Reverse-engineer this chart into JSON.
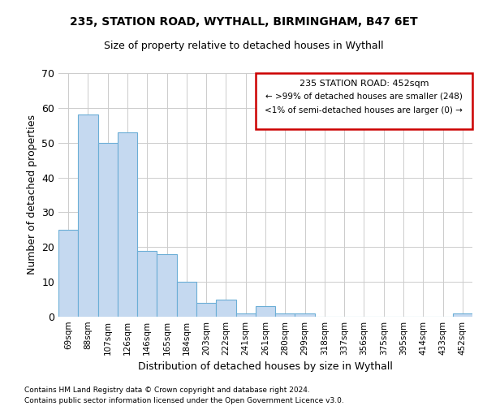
{
  "title1": "235, STATION ROAD, WYTHALL, BIRMINGHAM, B47 6ET",
  "title2": "Size of property relative to detached houses in Wythall",
  "xlabel": "Distribution of detached houses by size in Wythall",
  "ylabel": "Number of detached properties",
  "categories": [
    "69sqm",
    "88sqm",
    "107sqm",
    "126sqm",
    "146sqm",
    "165sqm",
    "184sqm",
    "203sqm",
    "222sqm",
    "241sqm",
    "261sqm",
    "280sqm",
    "299sqm",
    "318sqm",
    "337sqm",
    "356sqm",
    "375sqm",
    "395sqm",
    "414sqm",
    "433sqm",
    "452sqm"
  ],
  "values": [
    25,
    58,
    50,
    53,
    19,
    18,
    10,
    4,
    5,
    1,
    3,
    1,
    1,
    0,
    0,
    0,
    0,
    0,
    0,
    0,
    1
  ],
  "bar_color": "#c5d9f0",
  "bar_edge_color": "#6baed6",
  "highlight_box_color": "#cc0000",
  "annotation_title": "235 STATION ROAD: 452sqm",
  "annotation_line1": "← >99% of detached houses are smaller (248)",
  "annotation_line2": "<1% of semi-detached houses are larger (0) →",
  "ylim": [
    0,
    70
  ],
  "yticks": [
    0,
    10,
    20,
    30,
    40,
    50,
    60,
    70
  ],
  "footer1": "Contains HM Land Registry data © Crown copyright and database right 2024.",
  "footer2": "Contains public sector information licensed under the Open Government Licence v3.0.",
  "background_color": "#ffffff",
  "grid_color": "#cccccc"
}
